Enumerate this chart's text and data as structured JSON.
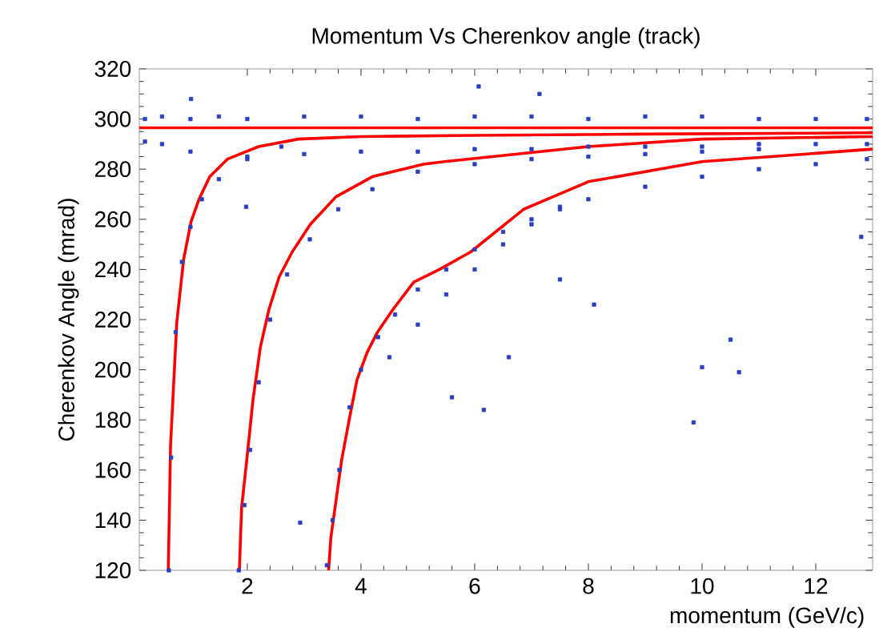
{
  "chart_data": {
    "type": "scatter",
    "title": "Momentum Vs Cherenkov angle (track)",
    "xlabel": "momentum (GeV/c)",
    "ylabel": "Cherenkov Angle (mrad)",
    "xlim": [
      0.1,
      13
    ],
    "ylim": [
      120,
      320
    ],
    "xticks": [
      2,
      4,
      6,
      8,
      10,
      12
    ],
    "yticks": [
      120,
      140,
      160,
      180,
      200,
      220,
      240,
      260,
      280,
      300,
      320
    ],
    "grid": false,
    "marker": "square",
    "series": [
      {
        "color": "#2a3fbf",
        "x": [
          0.2,
          0.5,
          1.0,
          1.5,
          2.0,
          3.0,
          4.0,
          5.0,
          6.0,
          7.0,
          8.0,
          9.0,
          10.0,
          11.0,
          12.0,
          12.9,
          0.2,
          0.5,
          1.0,
          2.0,
          3.0,
          4.0,
          5.0,
          6.0,
          7.0,
          8.0,
          9.0,
          10.0,
          11.0,
          12.0,
          12.9,
          0.62,
          0.66,
          0.74,
          0.85,
          1.0,
          1.2,
          1.5,
          2.0,
          2.6,
          1.85,
          1.95,
          2.05,
          2.2,
          2.4,
          2.7,
          3.1,
          3.6,
          4.2,
          5.0,
          6.0,
          7.0,
          8.0,
          9.0,
          10.0,
          11.0,
          3.4,
          3.5,
          3.62,
          3.8,
          4.0,
          4.3,
          4.6,
          5.0,
          5.5,
          6.0,
          6.5,
          7.0,
          7.5,
          8.0,
          9.0,
          10.0,
          11.0,
          12.0,
          12.9,
          4.5,
          5.0,
          5.5,
          6.0,
          6.5,
          7.0,
          7.5,
          6.07,
          7.14,
          9.85,
          6.16,
          10.0,
          10.65,
          10.5,
          12.8,
          5.6,
          6.6,
          8.1,
          7.5,
          2.93,
          1.98,
          1.01
        ],
        "values": [
          300,
          301,
          300,
          301,
          300,
          301,
          301,
          300,
          301,
          301,
          300,
          301,
          301,
          300,
          300,
          300,
          291,
          290,
          287,
          285,
          286,
          287,
          287,
          288,
          288,
          289,
          289,
          289,
          290,
          290,
          290,
          120,
          165,
          215,
          243,
          257,
          268,
          276,
          284,
          289,
          120,
          146,
          168,
          195,
          220,
          238,
          252,
          264,
          272,
          279,
          282,
          284,
          285,
          286,
          287,
          288,
          122,
          140,
          160,
          185,
          200,
          213,
          222,
          232,
          240,
          248,
          255,
          260,
          265,
          268,
          273,
          277,
          280,
          282,
          284,
          205,
          218,
          230,
          240,
          250,
          258,
          264,
          313,
          310,
          179,
          184,
          201,
          199,
          212,
          253,
          189,
          205,
          226,
          236,
          139,
          265,
          308
        ]
      },
      {
        "type": "line",
        "marker": "none",
        "color": "#ff0000",
        "x": [
          0.1,
          13
        ],
        "values": [
          296.5,
          296.5
        ]
      },
      {
        "type": "line",
        "marker": "none",
        "color": "#ff0000",
        "x": [
          0.61,
          0.65,
          0.76,
          0.88,
          1.01,
          1.15,
          1.34,
          1.65,
          2.2,
          2.9,
          4.0,
          6.0,
          9.0,
          13.0
        ],
        "values": [
          120,
          170,
          219,
          244,
          259,
          268,
          277,
          284,
          289,
          292,
          293,
          293.5,
          294,
          294.5
        ]
      },
      {
        "type": "line",
        "marker": "none",
        "color": "#ff0000",
        "x": [
          1.86,
          1.9,
          2.0,
          2.1,
          2.23,
          2.38,
          2.56,
          2.79,
          3.11,
          3.56,
          4.2,
          5.1,
          5.47,
          8.0,
          10.0,
          13.0
        ],
        "values": [
          120,
          145,
          166,
          188,
          209,
          224,
          237,
          247,
          258,
          269,
          277,
          282,
          283,
          289,
          292,
          293
        ]
      },
      {
        "type": "line",
        "marker": "none",
        "color": "#ff0000",
        "x": [
          3.43,
          3.47,
          3.55,
          3.66,
          3.8,
          3.93,
          4.11,
          4.29,
          4.56,
          4.93,
          5.38,
          5.93,
          6.86,
          8.0,
          10.0,
          13.0
        ],
        "values": [
          120,
          133,
          146,
          164,
          181,
          196,
          207,
          215,
          224,
          235,
          240,
          247,
          264,
          275,
          283,
          288
        ]
      }
    ]
  }
}
